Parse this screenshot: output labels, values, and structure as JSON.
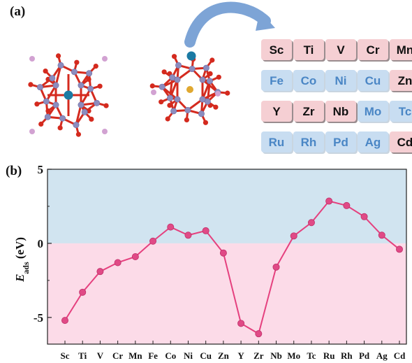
{
  "panel_a": {
    "label": "(a)",
    "element_grid": {
      "rows": [
        [
          {
            "symbol": "Sc",
            "group": "positive"
          },
          {
            "symbol": "Ti",
            "group": "positive"
          },
          {
            "symbol": "V",
            "group": "positive"
          },
          {
            "symbol": "Cr",
            "group": "positive"
          },
          {
            "symbol": "Mn",
            "group": "positive"
          }
        ],
        [
          {
            "symbol": "Fe",
            "group": "negative"
          },
          {
            "symbol": "Co",
            "group": "negative"
          },
          {
            "symbol": "Ni",
            "group": "negative"
          },
          {
            "symbol": "Cu",
            "group": "negative"
          },
          {
            "symbol": "Zn",
            "group": "positive"
          }
        ],
        [
          {
            "symbol": "Y",
            "group": "positive"
          },
          {
            "symbol": "Zr",
            "group": "positive"
          },
          {
            "symbol": "Nb",
            "group": "positive"
          },
          {
            "symbol": "Mo",
            "group": "negative"
          },
          {
            "symbol": "Tc",
            "group": "negative"
          }
        ],
        [
          {
            "symbol": "Ru",
            "group": "negative"
          },
          {
            "symbol": "Rh",
            "group": "negative"
          },
          {
            "symbol": "Pd",
            "group": "negative"
          },
          {
            "symbol": "Ag",
            "group": "negative"
          },
          {
            "symbol": "Cd",
            "group": "positive"
          }
        ]
      ]
    },
    "colors": {
      "pink_cell": "#f5cfd3",
      "pink_text": "#111111",
      "blue_cell": "#c8ddf1",
      "blue_text": "#4a86c5",
      "arrow": "#7da4d6",
      "oxygen": "#d42a1e",
      "metal": "#8c8cbe",
      "center": "#1b7aa3",
      "tin": "#e0a830",
      "ion": "#d2a2d2"
    }
  },
  "panel_b": {
    "label": "(b)",
    "ylabel_main": "E",
    "ylabel_sub": "ads",
    "ylabel_unit": " (eV)"
  },
  "chart_data": {
    "type": "line",
    "categories": [
      "Sc",
      "Ti",
      "V",
      "Cr",
      "Mn",
      "Fe",
      "Co",
      "Ni",
      "Cu",
      "Zn",
      "Y",
      "Zr",
      "Nb",
      "Mo",
      "Tc",
      "Ru",
      "Rh",
      "Pd",
      "Ag",
      "Cd"
    ],
    "series": [
      {
        "values": [
          -5.2,
          -3.3,
          -1.9,
          -1.3,
          -0.9,
          0.15,
          1.1,
          0.55,
          0.85,
          -0.65,
          -5.4,
          -6.1,
          -1.6,
          0.5,
          1.4,
          2.85,
          2.55,
          1.8,
          0.55,
          -0.4
        ]
      }
    ],
    "yticks": [
      -5,
      0,
      5
    ],
    "ylim": [
      -6.8,
      5
    ],
    "background_bands": {
      "above_zero": "#d1e4f0",
      "below_zero": "#fcdbe8"
    },
    "line_color": "#e5407e",
    "marker_color": "#e04a86"
  }
}
